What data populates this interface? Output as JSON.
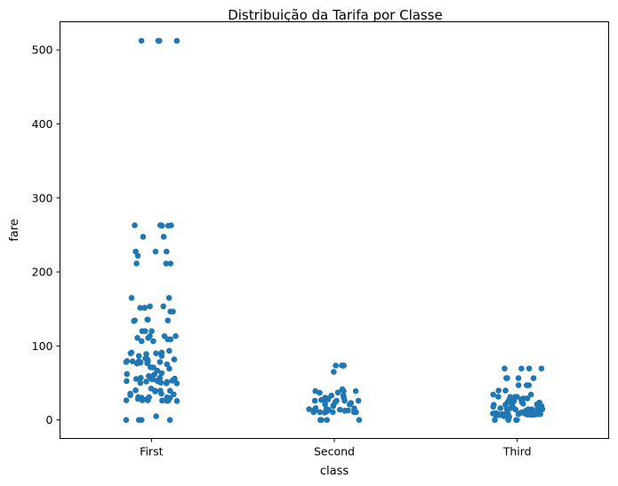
{
  "chart_data": {
    "type": "scatter",
    "subtype": "strip",
    "title": "Distribuição da Tarifa por Classe",
    "xlabel": "class",
    "ylabel": "fare",
    "categories": [
      "First",
      "Second",
      "Third"
    ],
    "ylim": [
      -25,
      538
    ],
    "yticks": [
      0,
      100,
      200,
      300,
      400,
      500
    ],
    "grid": false,
    "legend": "none",
    "color": "#1f77b4",
    "series": [
      {
        "category": "First",
        "values": [
          512.33,
          512.33,
          512.33,
          512.33,
          263,
          263,
          263,
          263,
          262.38,
          262.38,
          247.52,
          247.52,
          227.53,
          227.53,
          227.53,
          221.78,
          211.5,
          211.34,
          211.34,
          164.87,
          164.87,
          153.46,
          153.46,
          151.55,
          151.55,
          151.55,
          146.52,
          146.52,
          135.63,
          135.63,
          134.5,
          134.5,
          133.65,
          120,
          120,
          120,
          113.28,
          113.28,
          113.28,
          110.88,
          110.88,
          108.9,
          108.9,
          106.43,
          106.43,
          93.5,
          91.08,
          91.08,
          90,
          90,
          89.1,
          89.1,
          86.5,
          86.5,
          83.16,
          83.16,
          82.17,
          81.86,
          80,
          79.65,
          79.2,
          79.2,
          78.27,
          78.27,
          77.96,
          77.29,
          76.73,
          76.29,
          75.25,
          71.28,
          71,
          69.3,
          66.6,
          63.36,
          61.98,
          61.38,
          59.4,
          57.98,
          57,
          56.93,
          56.5,
          55.9,
          55.44,
          55,
          53.1,
          53.1,
          52.55,
          52,
          52,
          51.86,
          51.48,
          50.5,
          50,
          49.5,
          49.5,
          42.4,
          40.13,
          39.6,
          39.6,
          39.4,
          38.5,
          35.5,
          35.5,
          34.65,
          33.5,
          31,
          30.7,
          30.5,
          30,
          29.7,
          28.5,
          27.72,
          27.72,
          26.55,
          26.55,
          26.55,
          26.29,
          26,
          25.93,
          25.59,
          5,
          0,
          0,
          0,
          0
        ]
      },
      {
        "category": "Second",
        "values": [
          73.5,
          73.5,
          73.5,
          73.5,
          65,
          41.58,
          39,
          39,
          39,
          37,
          36.75,
          33,
          33,
          30.07,
          30,
          29,
          27.75,
          27,
          26.25,
          26,
          26,
          26,
          26,
          24,
          23,
          21,
          21,
          19.5,
          18.75,
          16,
          15.75,
          15.05,
          14.5,
          13.86,
          13.5,
          13,
          13,
          13,
          13,
          12.88,
          12.65,
          12.35,
          11.5,
          10.5,
          10.5,
          10.5,
          10,
          10.5,
          10.5,
          0,
          0,
          0,
          0
        ]
      },
      {
        "category": "Third",
        "values": [
          69.55,
          69.55,
          69.55,
          69.55,
          56.5,
          56.5,
          56.5,
          56.5,
          46.9,
          46.9,
          46.9,
          46.9,
          39.69,
          39.69,
          34.38,
          34.38,
          31.39,
          31.39,
          31.28,
          31.28,
          29.13,
          29.13,
          27.9,
          27.9,
          25.47,
          25.47,
          24.15,
          24.15,
          23.45,
          23.45,
          22.03,
          21.68,
          21.08,
          20.58,
          20.53,
          20.25,
          20.21,
          19.26,
          18.79,
          17.8,
          16.7,
          16.1,
          15.85,
          15.5,
          15.25,
          15.1,
          14.5,
          14.46,
          14.4,
          14.11,
          12.48,
          12.29,
          11.24,
          11.13,
          10.52,
          9.84,
          9.5,
          9.35,
          9.23,
          8.85,
          8.66,
          8.46,
          8.05,
          8.05,
          8.05,
          7.93,
          7.9,
          7.9,
          7.85,
          7.78,
          7.75,
          7.75,
          7.75,
          7.74,
          7.73,
          7.65,
          7.5,
          7.25,
          7.23,
          7.23,
          7.22,
          7.05,
          6.98,
          6.75,
          6.5,
          6.24,
          5,
          4.01,
          0,
          0,
          0,
          0
        ]
      }
    ]
  }
}
